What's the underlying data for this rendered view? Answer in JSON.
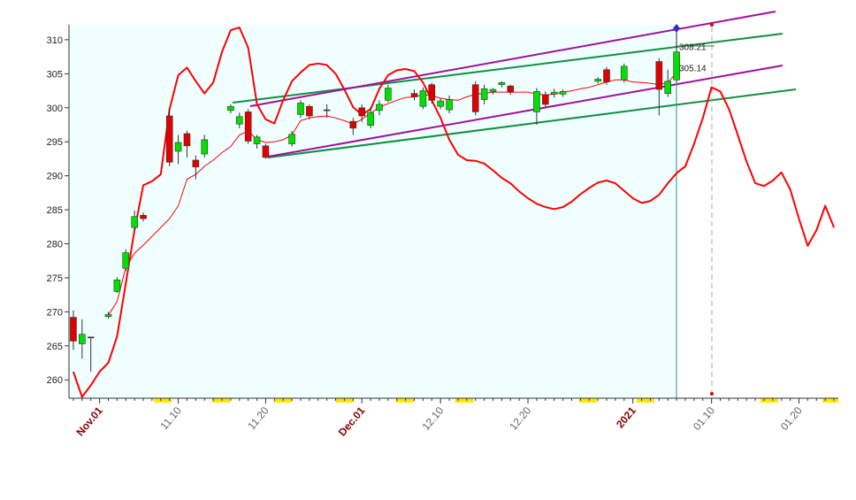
{
  "chart_data": {
    "type": "candlestick",
    "categories": [
      null,
      null,
      null,
      "Nov.01",
      null,
      null,
      null,
      null,
      null,
      null,
      null,
      null,
      "11.10",
      null,
      null,
      null,
      null,
      null,
      null,
      null,
      null,
      null,
      "11.20",
      null,
      null,
      null,
      null,
      null,
      null,
      null,
      null,
      null,
      null,
      "Dec.01",
      null,
      null,
      null,
      null,
      null,
      null,
      null,
      null,
      "12.10",
      null,
      null,
      null,
      null,
      null,
      null,
      null,
      null,
      null,
      "12.20",
      null,
      null,
      null,
      null,
      null,
      null,
      null,
      null,
      null,
      null,
      null,
      "2021",
      null,
      null,
      null,
      null,
      null,
      null,
      null,
      null,
      "01.10",
      null,
      null,
      null,
      null,
      null,
      null,
      null,
      null,
      null,
      "01.20",
      null,
      null,
      null,
      null
    ],
    "open": [
      269.2,
      265.3,
      266.3,
      null,
      269.3,
      273.0,
      276.4,
      282.4,
      284.2,
      null,
      null,
      298.8,
      293.6,
      296.2,
      292.3,
      293.2,
      null,
      null,
      299.6,
      297.6,
      299.4,
      294.7,
      294.4,
      null,
      null,
      294.7,
      299.0,
      300.2,
      null,
      299.7,
      null,
      null,
      298.0,
      300.0,
      297.4,
      299.6,
      301.1,
      null,
      null,
      302.1,
      300.2,
      303.4,
      300.2,
      299.7,
      null,
      null,
      303.4,
      301.2,
      302.4,
      303.4,
      303.2,
      null,
      null,
      299.4,
      301.9,
      302.0,
      302.0,
      null,
      null,
      null,
      303.9,
      305.6,
      null,
      304.1,
      null,
      null,
      null,
      306.8,
      302.1,
      304.1,
      null,
      null,
      null,
      null,
      null,
      null,
      null,
      null,
      null,
      null,
      null,
      null,
      null,
      null,
      null,
      null,
      null,
      null
    ],
    "high": [
      270.2,
      268.9,
      266.3,
      null,
      270.0,
      275.1,
      279.2,
      284.9,
      284.6,
      null,
      null,
      299.8,
      296.0,
      296.6,
      293.0,
      296.0,
      null,
      null,
      300.5,
      299.3,
      299.8,
      296.0,
      294.7,
      null,
      null,
      296.6,
      301.1,
      300.5,
      null,
      300.5,
      null,
      null,
      298.5,
      300.5,
      300.1,
      301.1,
      303.4,
      null,
      null,
      302.7,
      303.0,
      303.7,
      301.4,
      301.8,
      null,
      null,
      303.9,
      303.4,
      302.9,
      303.9,
      303.4,
      null,
      null,
      302.9,
      302.4,
      302.8,
      302.7,
      null,
      null,
      null,
      304.5,
      306.0,
      null,
      306.5,
      null,
      null,
      null,
      307.3,
      305.6,
      311.2,
      null,
      null,
      null,
      null,
      null,
      null,
      null,
      null,
      null,
      null,
      null,
      null,
      null,
      null,
      null,
      null,
      null,
      null
    ],
    "low": [
      264.4,
      263.1,
      261.2,
      null,
      269.0,
      272.8,
      276.0,
      282.0,
      283.3,
      null,
      null,
      291.4,
      291.7,
      292.7,
      289.5,
      292.7,
      null,
      null,
      299.2,
      297.0,
      294.7,
      294.0,
      292.5,
      null,
      null,
      294.3,
      298.5,
      298.3,
      null,
      298.5,
      null,
      null,
      296.0,
      297.9,
      297.0,
      298.9,
      300.8,
      null,
      null,
      301.1,
      299.8,
      300.6,
      299.8,
      299.2,
      null,
      null,
      298.9,
      300.5,
      302.0,
      303.0,
      301.9,
      null,
      null,
      297.5,
      300.1,
      301.5,
      301.6,
      null,
      null,
      null,
      303.6,
      303.4,
      null,
      303.7,
      null,
      null,
      null,
      298.9,
      301.6,
      303.7,
      null,
      null,
      null,
      null,
      null,
      null,
      null,
      null,
      null,
      null,
      null,
      null,
      null,
      null,
      null,
      null,
      null,
      null
    ],
    "close": [
      265.7,
      266.7,
      266.3,
      null,
      269.6,
      274.7,
      278.7,
      284.0,
      283.7,
      null,
      null,
      292.0,
      294.9,
      294.4,
      291.3,
      295.3,
      null,
      null,
      300.2,
      298.7,
      295.1,
      295.7,
      292.7,
      null,
      null,
      296.1,
      300.7,
      298.8,
      null,
      299.7,
      null,
      null,
      297.0,
      298.8,
      299.3,
      300.5,
      302.9,
      null,
      null,
      301.6,
      302.5,
      301.1,
      301.0,
      301.2,
      null,
      null,
      299.4,
      302.8,
      302.7,
      303.7,
      302.3,
      null,
      null,
      302.4,
      300.5,
      302.3,
      302.4,
      null,
      null,
      null,
      304.2,
      303.8,
      null,
      306.1,
      null,
      null,
      null,
      302.7,
      303.9,
      308.21,
      null,
      null,
      null,
      null,
      null,
      null,
      null,
      null,
      null,
      null,
      null,
      null,
      null,
      null,
      null,
      null,
      null,
      null
    ],
    "up_color": "#00e000",
    "down_color": "#e00000",
    "flat_color": "#333333",
    "lines": [
      {
        "color": "#ff0000",
        "width": 1,
        "values": [
          null,
          null,
          null,
          null,
          269.5,
          271.5,
          276.6,
          278.6,
          279.8,
          281.1,
          282.4,
          283.7,
          285.6,
          289.5,
          290.2,
          291.4,
          292.3,
          293.4,
          294.3,
          296.0,
          296.6,
          295.3,
          294.9,
          295.0,
          295.3,
          296.0,
          298.1,
          298.5,
          298.7,
          298.8,
          298.5,
          298.1,
          297.6,
          298.3,
          299.2,
          300.1,
          300.6,
          301.1,
          301.5,
          301.6,
          301.9,
          301.8,
          301.4,
          301.2,
          301.1,
          301.6,
          302.0,
          302.1,
          302.3,
          302.3,
          302.3,
          302.3,
          302.3,
          302.0,
          301.9,
          302.0,
          302.3,
          302.5,
          302.8,
          303.0,
          303.4,
          303.8,
          304.1,
          304.1,
          303.8,
          303.7,
          303.6,
          303.4,
          303.7,
          305.14,
          null,
          null,
          null,
          null,
          null,
          null,
          null,
          null,
          null,
          null,
          null,
          null,
          null,
          null,
          null,
          null,
          null,
          null
        ]
      },
      {
        "color": "#ff0000",
        "width": 2,
        "values": [
          261.2,
          257.5,
          259.2,
          261.2,
          262.5,
          266.4,
          274.2,
          282.0,
          288.6,
          289.2,
          290.2,
          299.8,
          304.8,
          305.9,
          303.9,
          302.1,
          303.7,
          308.2,
          311.4,
          311.8,
          308.8,
          300.5,
          298.3,
          297.7,
          301.1,
          303.9,
          305.2,
          306.3,
          306.5,
          306.3,
          305.0,
          302.7,
          300.1,
          299.0,
          299.8,
          302.8,
          304.8,
          305.5,
          305.7,
          305.4,
          303.7,
          301.1,
          298.5,
          295.3,
          293.1,
          292.3,
          292.2,
          291.8,
          290.8,
          289.7,
          288.9,
          287.7,
          286.7,
          285.9,
          285.4,
          285.1,
          285.4,
          286.2,
          287.3,
          288.2,
          289.0,
          289.3,
          288.9,
          287.8,
          286.7,
          286.0,
          286.3,
          287.2,
          288.9,
          290.4,
          291.4,
          294.7,
          298.5,
          303.0,
          302.4,
          299.8,
          296.0,
          292.1,
          288.9,
          288.5,
          289.3,
          290.5,
          288.0,
          283.7,
          279.7,
          282.0,
          285.6,
          282.4
        ]
      }
    ],
    "price_labels": [
      308.21,
      305.14
    ],
    "ylim": [
      257.3,
      312.2
    ],
    "yticks": [
      260,
      265,
      270,
      275,
      280,
      285,
      290,
      295,
      300,
      305,
      310
    ]
  }
}
